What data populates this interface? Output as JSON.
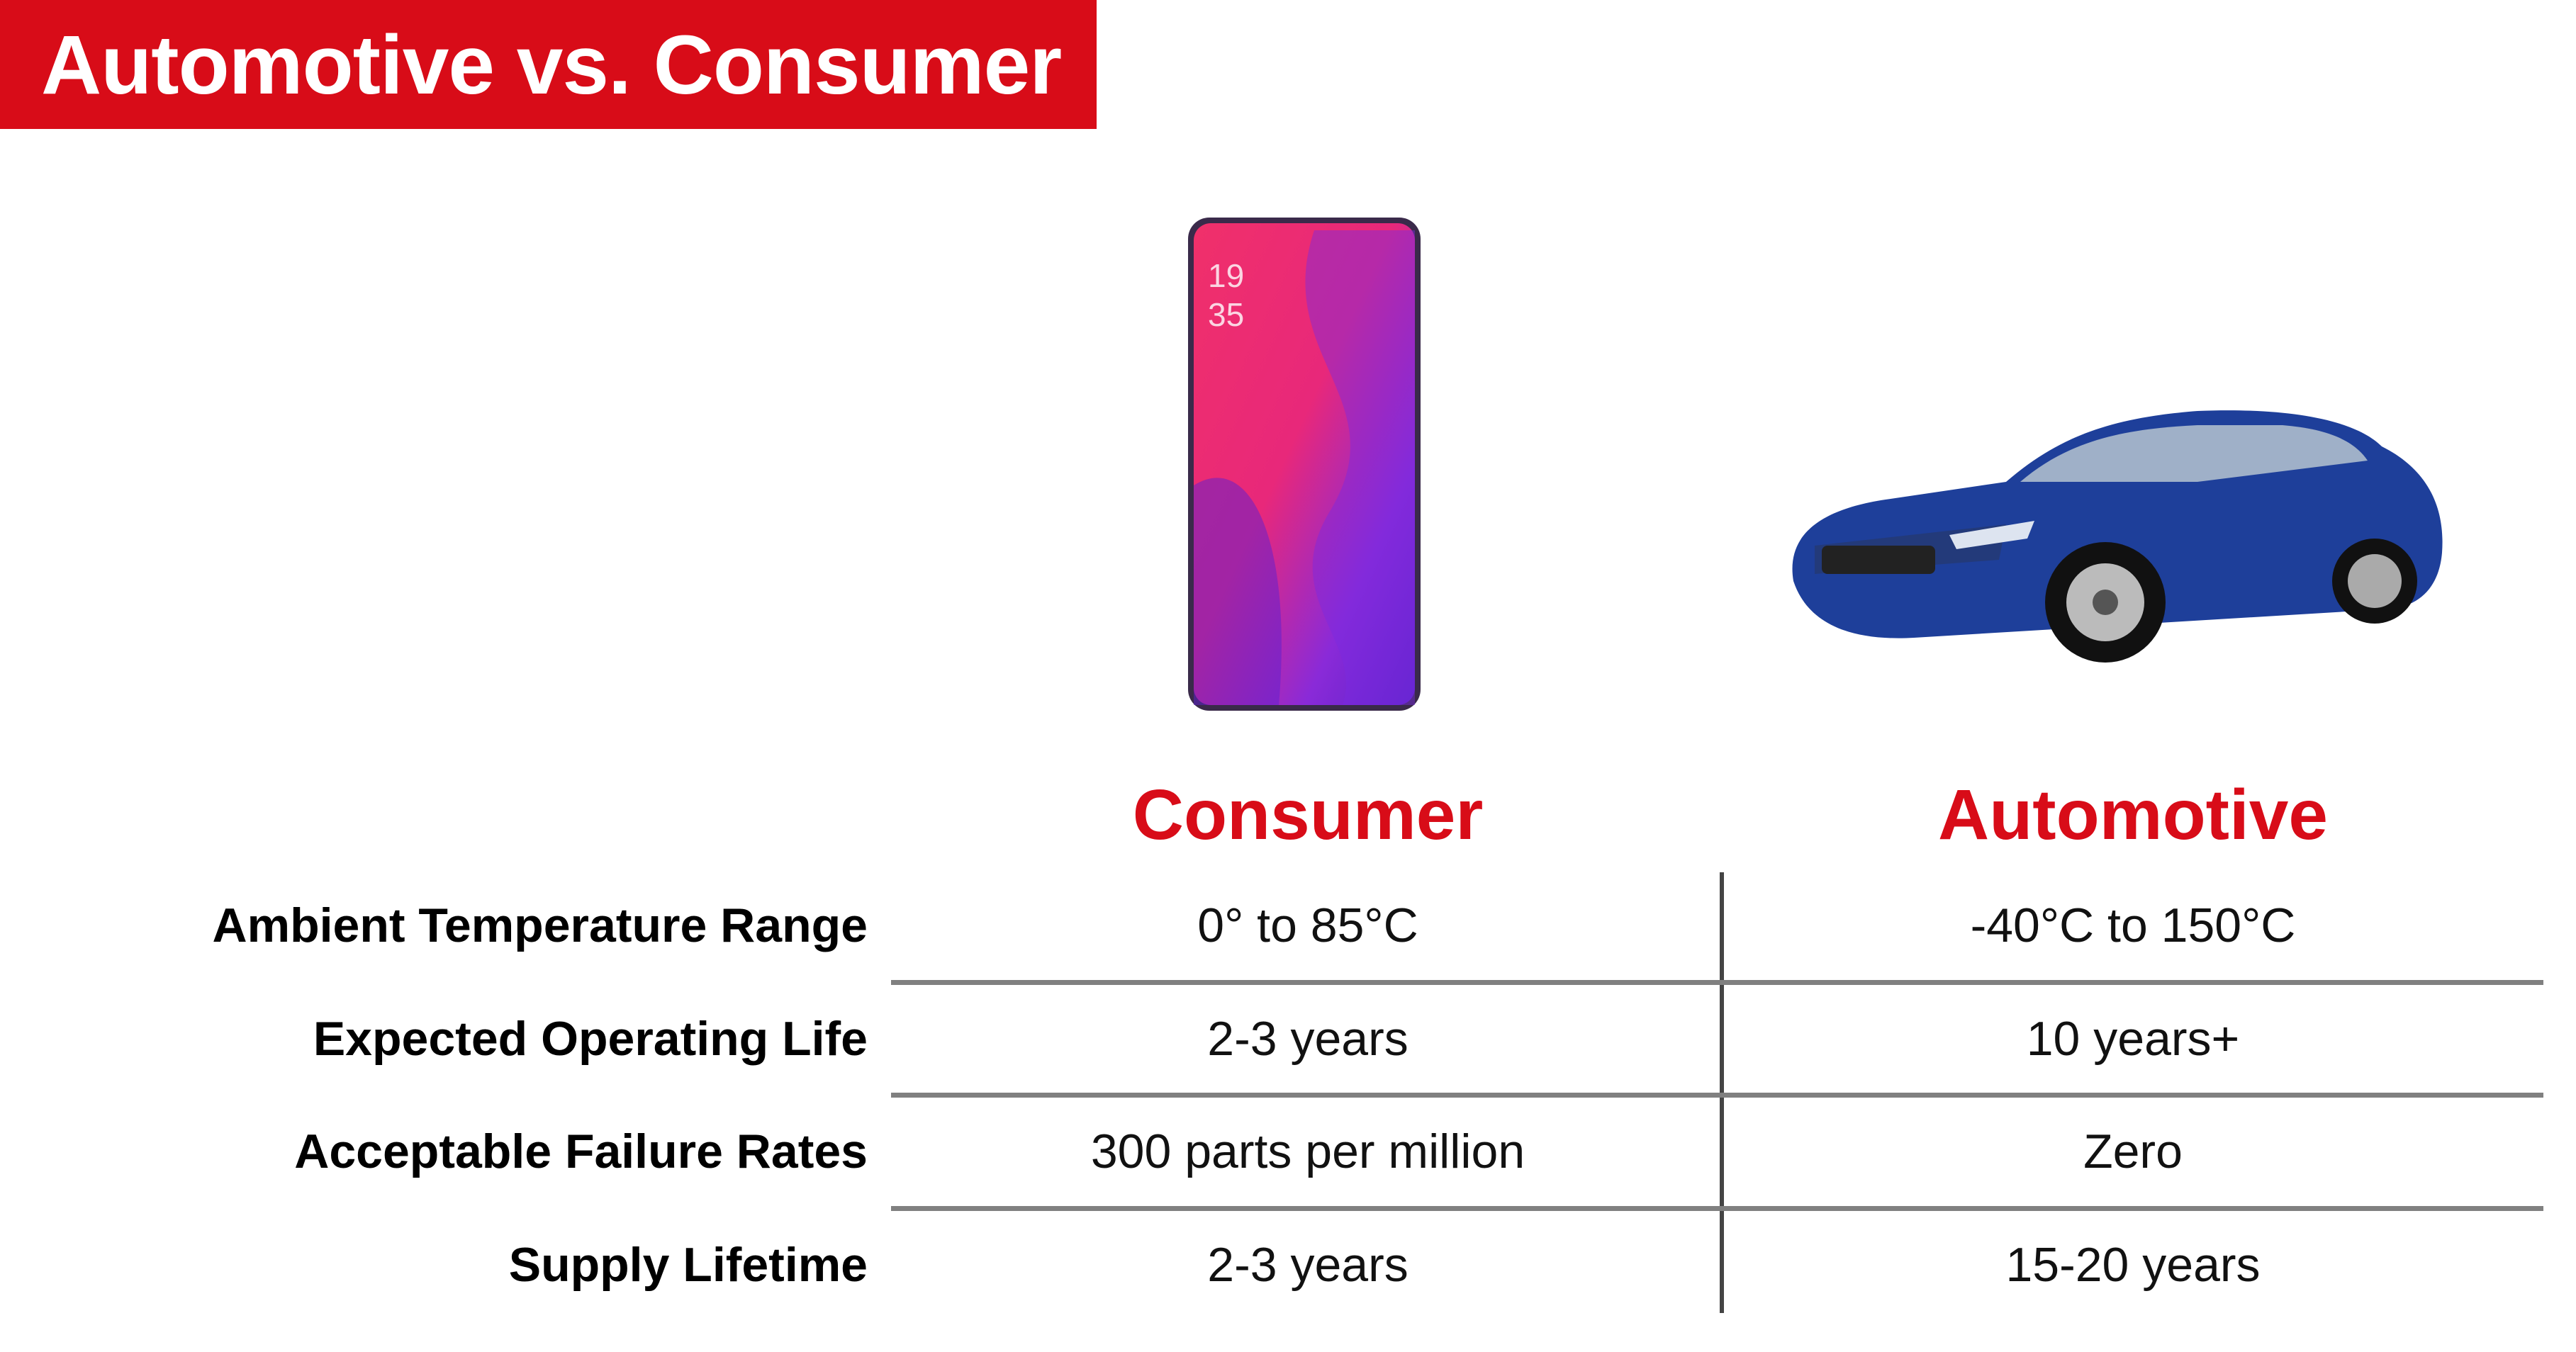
{
  "title": "Automotive vs. Consumer",
  "columns": {
    "consumer": "Consumer",
    "automotive": "Automotive"
  },
  "accent_color": "#d80c18",
  "images": {
    "consumer": "smartphone-image",
    "automotive": "blue-sedan-car-image"
  },
  "phone_screen": {
    "clock": "19\n35"
  },
  "rows": [
    {
      "label": "Ambient Temperature Range",
      "consumer": "0° to 85°C",
      "automotive": "-40°C to 150°C"
    },
    {
      "label": "Expected Operating Life",
      "consumer": "2-3 years",
      "automotive": "10 years+"
    },
    {
      "label": "Acceptable Failure Rates",
      "consumer": "300 parts per million",
      "automotive": "Zero"
    },
    {
      "label": "Supply Lifetime",
      "consumer": "2-3 years",
      "automotive": "15-20 years"
    }
  ]
}
